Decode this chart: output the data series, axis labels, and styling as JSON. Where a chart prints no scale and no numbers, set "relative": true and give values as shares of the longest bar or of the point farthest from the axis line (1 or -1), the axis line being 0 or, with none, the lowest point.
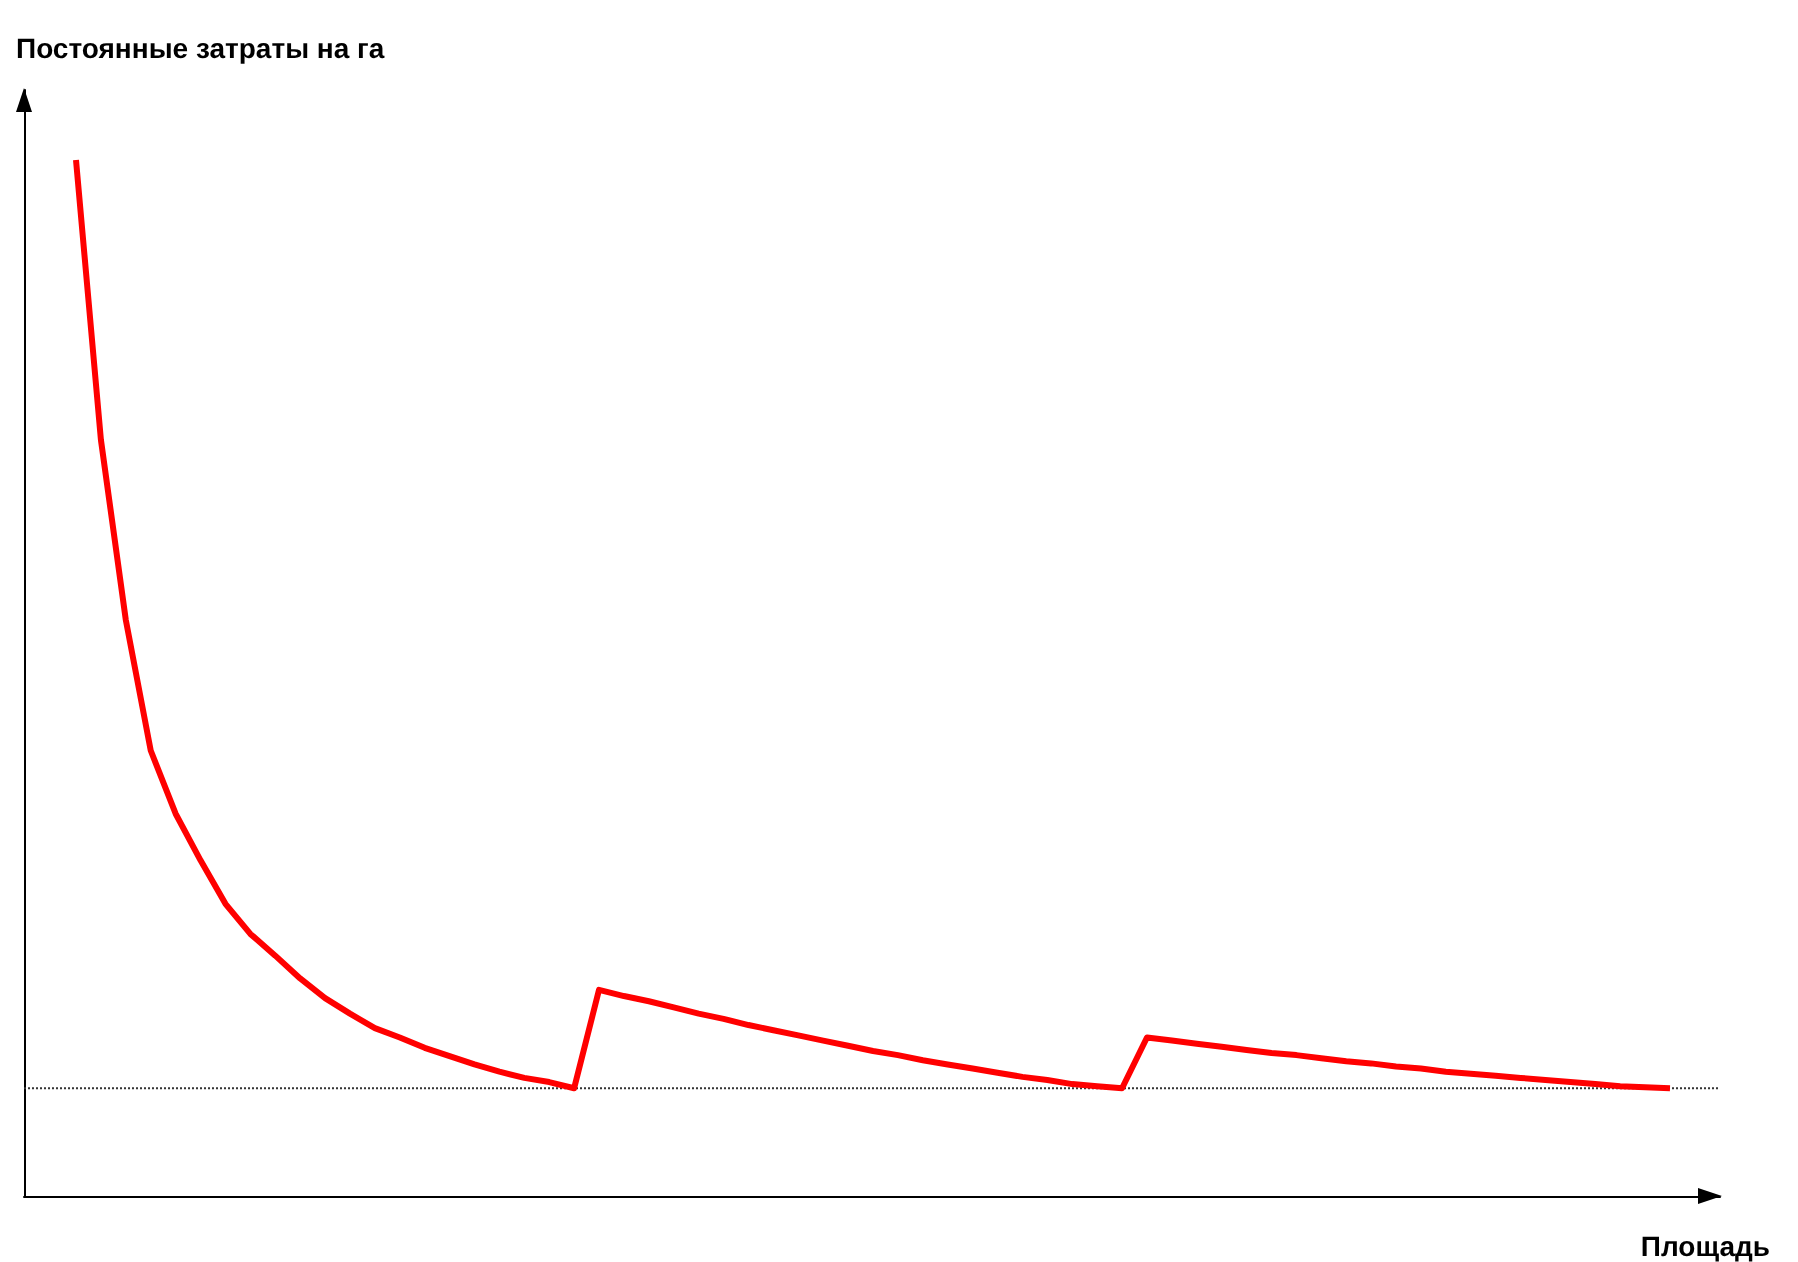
{
  "chart_data": {
    "type": "line",
    "relative": true,
    "xlabel": "Площадь",
    "ylabel": "Постоянные затраты на га",
    "color": "#ff0000",
    "grid": false,
    "marker": "none",
    "line_style": "solid",
    "categories": [
      null,
      null,
      null,
      null,
      null,
      null,
      null,
      null,
      null,
      null,
      null,
      null,
      null,
      null,
      null,
      null,
      null,
      null,
      null,
      null,
      null,
      null,
      null,
      null,
      null,
      null,
      null,
      null,
      null,
      null,
      null,
      null,
      null,
      null,
      null,
      null,
      null,
      null,
      null,
      null,
      null,
      null,
      null,
      null,
      null,
      null,
      null,
      null,
      null,
      null,
      null,
      null,
      null,
      null,
      null,
      null,
      null,
      null,
      null,
      null,
      null,
      null,
      null,
      null,
      null
    ],
    "values": [
      1.0,
      0.73,
      0.556,
      0.43,
      0.369,
      0.324,
      0.282,
      0.253,
      0.232,
      0.21,
      0.191,
      0.176,
      0.162,
      0.153,
      0.143,
      0.135,
      0.127,
      0.12,
      0.114,
      0.11,
      0.104,
      0.199,
      0.193,
      0.188,
      0.182,
      0.176,
      0.171,
      0.165,
      0.16,
      0.155,
      0.15,
      0.145,
      0.14,
      0.136,
      0.131,
      0.127,
      0.123,
      0.119,
      0.115,
      0.112,
      0.108,
      0.106,
      0.104,
      0.153,
      0.15,
      0.147,
      0.144,
      0.141,
      0.138,
      0.136,
      0.133,
      0.13,
      0.128,
      0.125,
      0.123,
      0.12,
      0.118,
      0.116,
      0.114,
      0.112,
      0.11,
      0.108,
      0.106,
      0.105,
      0.104
    ],
    "ref_lines": [
      {
        "axis": "y",
        "value": 0.104,
        "color": "#333333",
        "line_style": "dotted"
      }
    ]
  }
}
